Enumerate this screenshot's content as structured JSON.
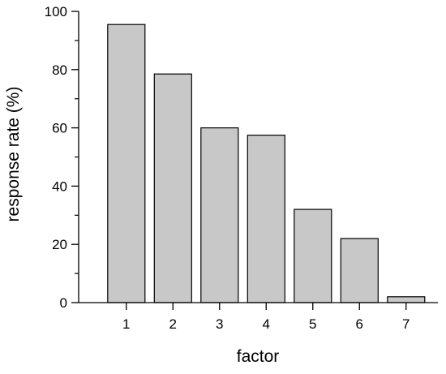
{
  "chart_data": {
    "type": "bar",
    "categories": [
      "1",
      "2",
      "3",
      "4",
      "5",
      "6",
      "7"
    ],
    "values": [
      95.5,
      78.5,
      60,
      57.5,
      32,
      22,
      2
    ],
    "title": "",
    "xlabel": "factor",
    "ylabel": "response rate (%)",
    "ylim": [
      0,
      100
    ],
    "yticks": [
      0,
      20,
      40,
      60,
      80,
      100
    ],
    "yticks_minor": [
      10,
      30,
      50,
      70,
      90
    ],
    "grid": false,
    "legend": "none",
    "bar_fill": "#c8c8c8",
    "bar_stroke": "#000000"
  }
}
